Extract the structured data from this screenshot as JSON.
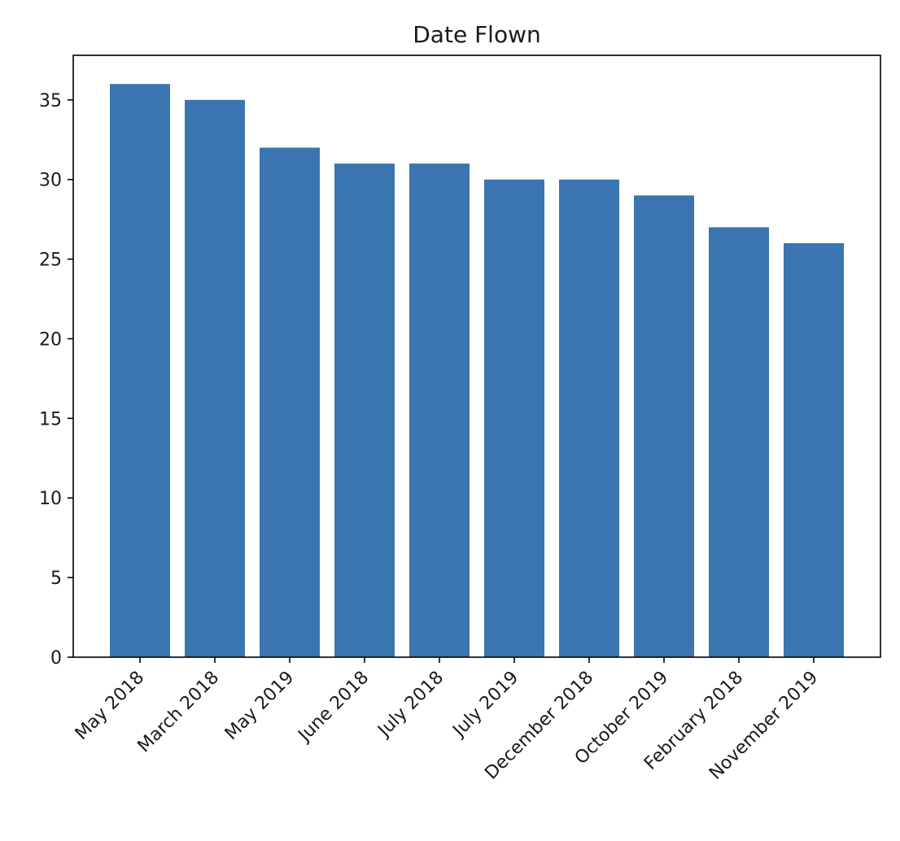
{
  "chart_data": {
    "type": "bar",
    "title": "Date Flown",
    "xlabel": "",
    "ylabel": "",
    "categories": [
      "May 2018",
      "March 2018",
      "May 2019",
      "June 2018",
      "July 2018",
      "July 2019",
      "December 2018",
      "October 2019",
      "February 2018",
      "November 2019"
    ],
    "values": [
      36,
      35,
      32,
      31,
      31,
      30,
      30,
      29,
      27,
      26
    ],
    "ylim": [
      0,
      37.8
    ],
    "yticks": [
      0,
      5,
      10,
      15,
      20,
      25,
      30,
      35
    ],
    "grid": false,
    "legend": "none",
    "bar_color": "#3b75af",
    "axis_color": "#000000"
  }
}
